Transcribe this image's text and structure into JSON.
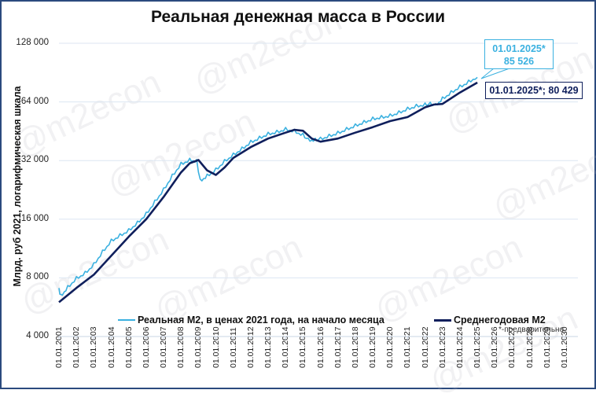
{
  "title": "Реальная денежная масса в России",
  "watermark": "@m2econ",
  "note": "*-предварительно",
  "colors": {
    "real": "#3bb1e0",
    "avg": "#0f1f5c",
    "grid": "#dce6f2",
    "frame": "#2b4a7e"
  },
  "callouts": {
    "real_line1": "01.01.2025*",
    "real_line2": "85 526",
    "avg": "01.01.2025*;  80 429"
  },
  "legend": {
    "real": "Реальная М2, в ценах 2021 года, на начало месяца",
    "avg": "Среднегодовая М2"
  },
  "chart_data": {
    "type": "line",
    "title": "Реальная денежная масса в России",
    "xlabel": "",
    "ylabel": "Млрд. руб 2021, логарифмическая шкала",
    "yscale": "log2",
    "ylim": [
      4000,
      128000
    ],
    "yticks": [
      "4 000",
      "8 000",
      "16 000",
      "32 000",
      "64 000",
      "128 000"
    ],
    "ytick_values": [
      4000,
      8000,
      16000,
      32000,
      64000,
      128000
    ],
    "xticks": [
      "01.01.2001",
      "01.01.2002",
      "01.01.2003",
      "01.01.2004",
      "01.01.2005",
      "01.01.2006",
      "01.01.2007",
      "01.01.2008",
      "01.01.2009",
      "01.01.2010",
      "01.01.2011",
      "01.01.2012",
      "01.01.2013",
      "01.01.2014",
      "01.01.2015",
      "01.01.2016",
      "01.01.2017",
      "01.01.2018",
      "01.01.2019",
      "01.01.2020",
      "01.01.2021",
      "01.01.2022",
      "01.01.2023",
      "01.01.2024",
      "01.01.2025",
      "01.01.2026",
      "01.01.2027",
      "01.01.2028",
      "01.01.2029",
      "01.01.2030"
    ],
    "grid": true,
    "legend_position": "bottom",
    "series": [
      {
        "name": "Реальная М2, в ценах 2021 года, на начало месяца",
        "x": [
          2001.0,
          2001.1,
          2001.5,
          2002.0,
          2002.5,
          2003.0,
          2003.5,
          2004.0,
          2004.5,
          2005.0,
          2005.5,
          2006.0,
          2006.5,
          2007.0,
          2007.5,
          2008.0,
          2008.5,
          2008.9,
          2009.1,
          2009.5,
          2010.0,
          2010.5,
          2011.0,
          2011.5,
          2012.0,
          2012.5,
          2013.0,
          2013.5,
          2014.0,
          2014.5,
          2015.0,
          2015.3,
          2015.7,
          2016.0,
          2016.5,
          2017.0,
          2017.5,
          2018.0,
          2018.5,
          2019.0,
          2019.5,
          2020.0,
          2020.5,
          2021.0,
          2021.5,
          2022.0,
          2022.3,
          2022.6,
          2023.0,
          2023.5,
          2024.0,
          2024.5,
          2025.0
        ],
        "values": [
          6900,
          6400,
          7100,
          7900,
          8400,
          9300,
          10800,
          12300,
          13100,
          13900,
          15200,
          16900,
          19500,
          22500,
          26500,
          30500,
          32000,
          31500,
          25000,
          26500,
          28500,
          31500,
          34000,
          36500,
          39500,
          41500,
          43500,
          44500,
          46000,
          45000,
          43000,
          40500,
          40500,
          41000,
          42500,
          44000,
          46000,
          48000,
          50000,
          52000,
          53000,
          54000,
          56000,
          58500,
          60500,
          61500,
          62000,
          61000,
          66000,
          71000,
          76000,
          80500,
          85526
        ]
      },
      {
        "name": "Среднегодовая М2",
        "x": [
          2001,
          2002,
          2003,
          2004,
          2005,
          2006,
          2007,
          2008,
          2008.5,
          2009,
          2009.5,
          2010,
          2010.5,
          2011,
          2012,
          2013,
          2014,
          2014.5,
          2015,
          2015.5,
          2016,
          2017,
          2018,
          2019,
          2020,
          2021,
          2022,
          2022.5,
          2023,
          2024,
          2025
        ],
        "values": [
          6000,
          7100,
          8300,
          10400,
          13000,
          16000,
          20800,
          27800,
          31000,
          32200,
          28500,
          27000,
          29500,
          33000,
          37500,
          41500,
          44500,
          46000,
          45500,
          41500,
          40000,
          41500,
          44500,
          47500,
          51000,
          53500,
          60000,
          62000,
          62500,
          71500,
          80429
        ]
      }
    ],
    "annotations": [
      {
        "text": "01.01.2025* 85 526",
        "series": "Реальная М2",
        "x": "01.01.2025",
        "y": 85526
      },
      {
        "text": "01.01.2025*; 80 429",
        "series": "Среднегодовая М2",
        "x": "01.01.2025",
        "y": 80429
      }
    ]
  }
}
